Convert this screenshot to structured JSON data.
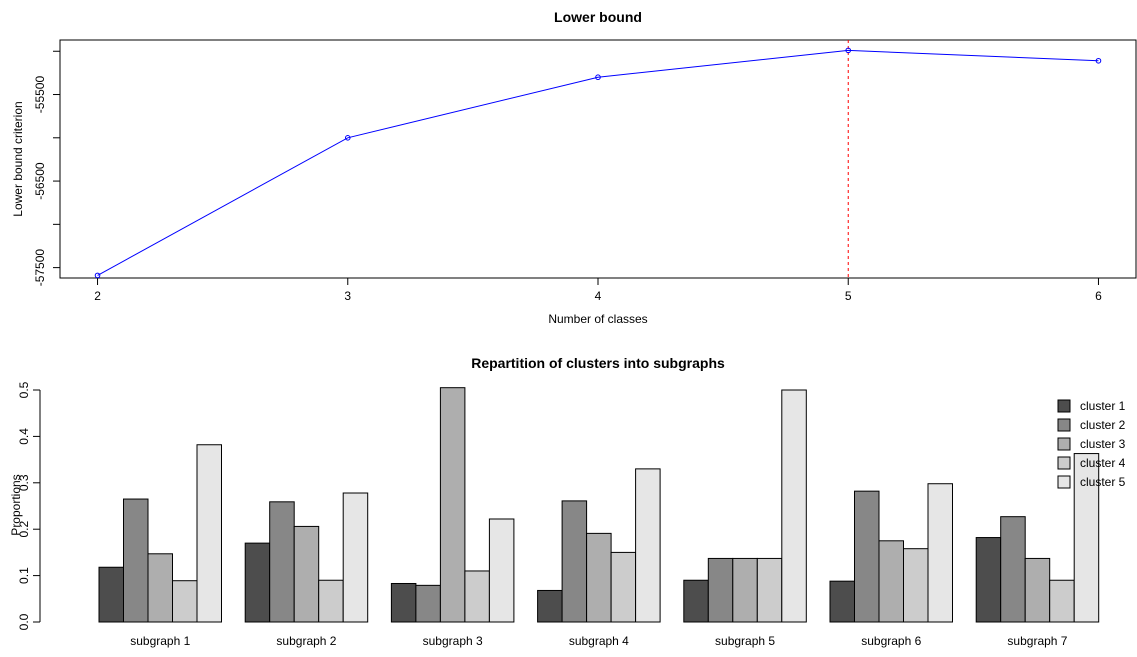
{
  "chart_data": [
    {
      "type": "line",
      "title": "Lower bound",
      "xlabel": "Number of classes",
      "ylabel": "Lower bound criterion",
      "x": [
        2,
        3,
        4,
        5,
        6
      ],
      "x_ticks": [
        "2",
        "3",
        "4",
        "5",
        "6"
      ],
      "y_ticks": [
        "-57500",
        "-56500",
        "-55500"
      ],
      "y_tick_values": [
        -57500,
        -56500,
        -55500
      ],
      "ylim": [
        -57620,
        -54870
      ],
      "xlim": [
        1.85,
        6.15
      ],
      "series": [
        {
          "values": [
            -57590,
            -56000,
            -55300,
            -54990,
            -55110
          ],
          "color": "#0000ff"
        }
      ],
      "vline": {
        "x": 5,
        "color": "#ff0000",
        "style": "dashed"
      },
      "grid": false
    },
    {
      "type": "bar",
      "title": "Repartition of clusters into subgraphs",
      "xlabel": "",
      "ylabel": "Proportions",
      "categories": [
        "subgraph 1",
        "subgraph 2",
        "subgraph 3",
        "subgraph 4",
        "subgraph 5",
        "subgraph 6",
        "subgraph 7"
      ],
      "ylim": [
        0,
        0.5
      ],
      "y_ticks": [
        "0.0",
        "0.1",
        "0.2",
        "0.3",
        "0.4",
        "0.5"
      ],
      "y_tick_values": [
        0,
        0.1,
        0.2,
        0.3,
        0.4,
        0.5
      ],
      "legend_position": "top-right",
      "grid": false,
      "series": [
        {
          "name": "cluster 1",
          "color": "#4d4d4d",
          "values": [
            0.118,
            0.17,
            0.083,
            0.068,
            0.09,
            0.088,
            0.182
          ]
        },
        {
          "name": "cluster 2",
          "color": "#878787",
          "values": [
            0.265,
            0.259,
            0.079,
            0.261,
            0.137,
            0.282,
            0.227
          ]
        },
        {
          "name": "cluster 3",
          "color": "#aeaeae",
          "values": [
            0.147,
            0.206,
            0.505,
            0.191,
            0.137,
            0.175,
            0.137
          ]
        },
        {
          "name": "cluster 4",
          "color": "#cccccc",
          "values": [
            0.089,
            0.09,
            0.11,
            0.15,
            0.137,
            0.158,
            0.09
          ]
        },
        {
          "name": "cluster 5",
          "color": "#e6e6e6",
          "values": [
            0.382,
            0.278,
            0.222,
            0.33,
            0.5,
            0.298,
            0.363
          ]
        }
      ]
    }
  ]
}
